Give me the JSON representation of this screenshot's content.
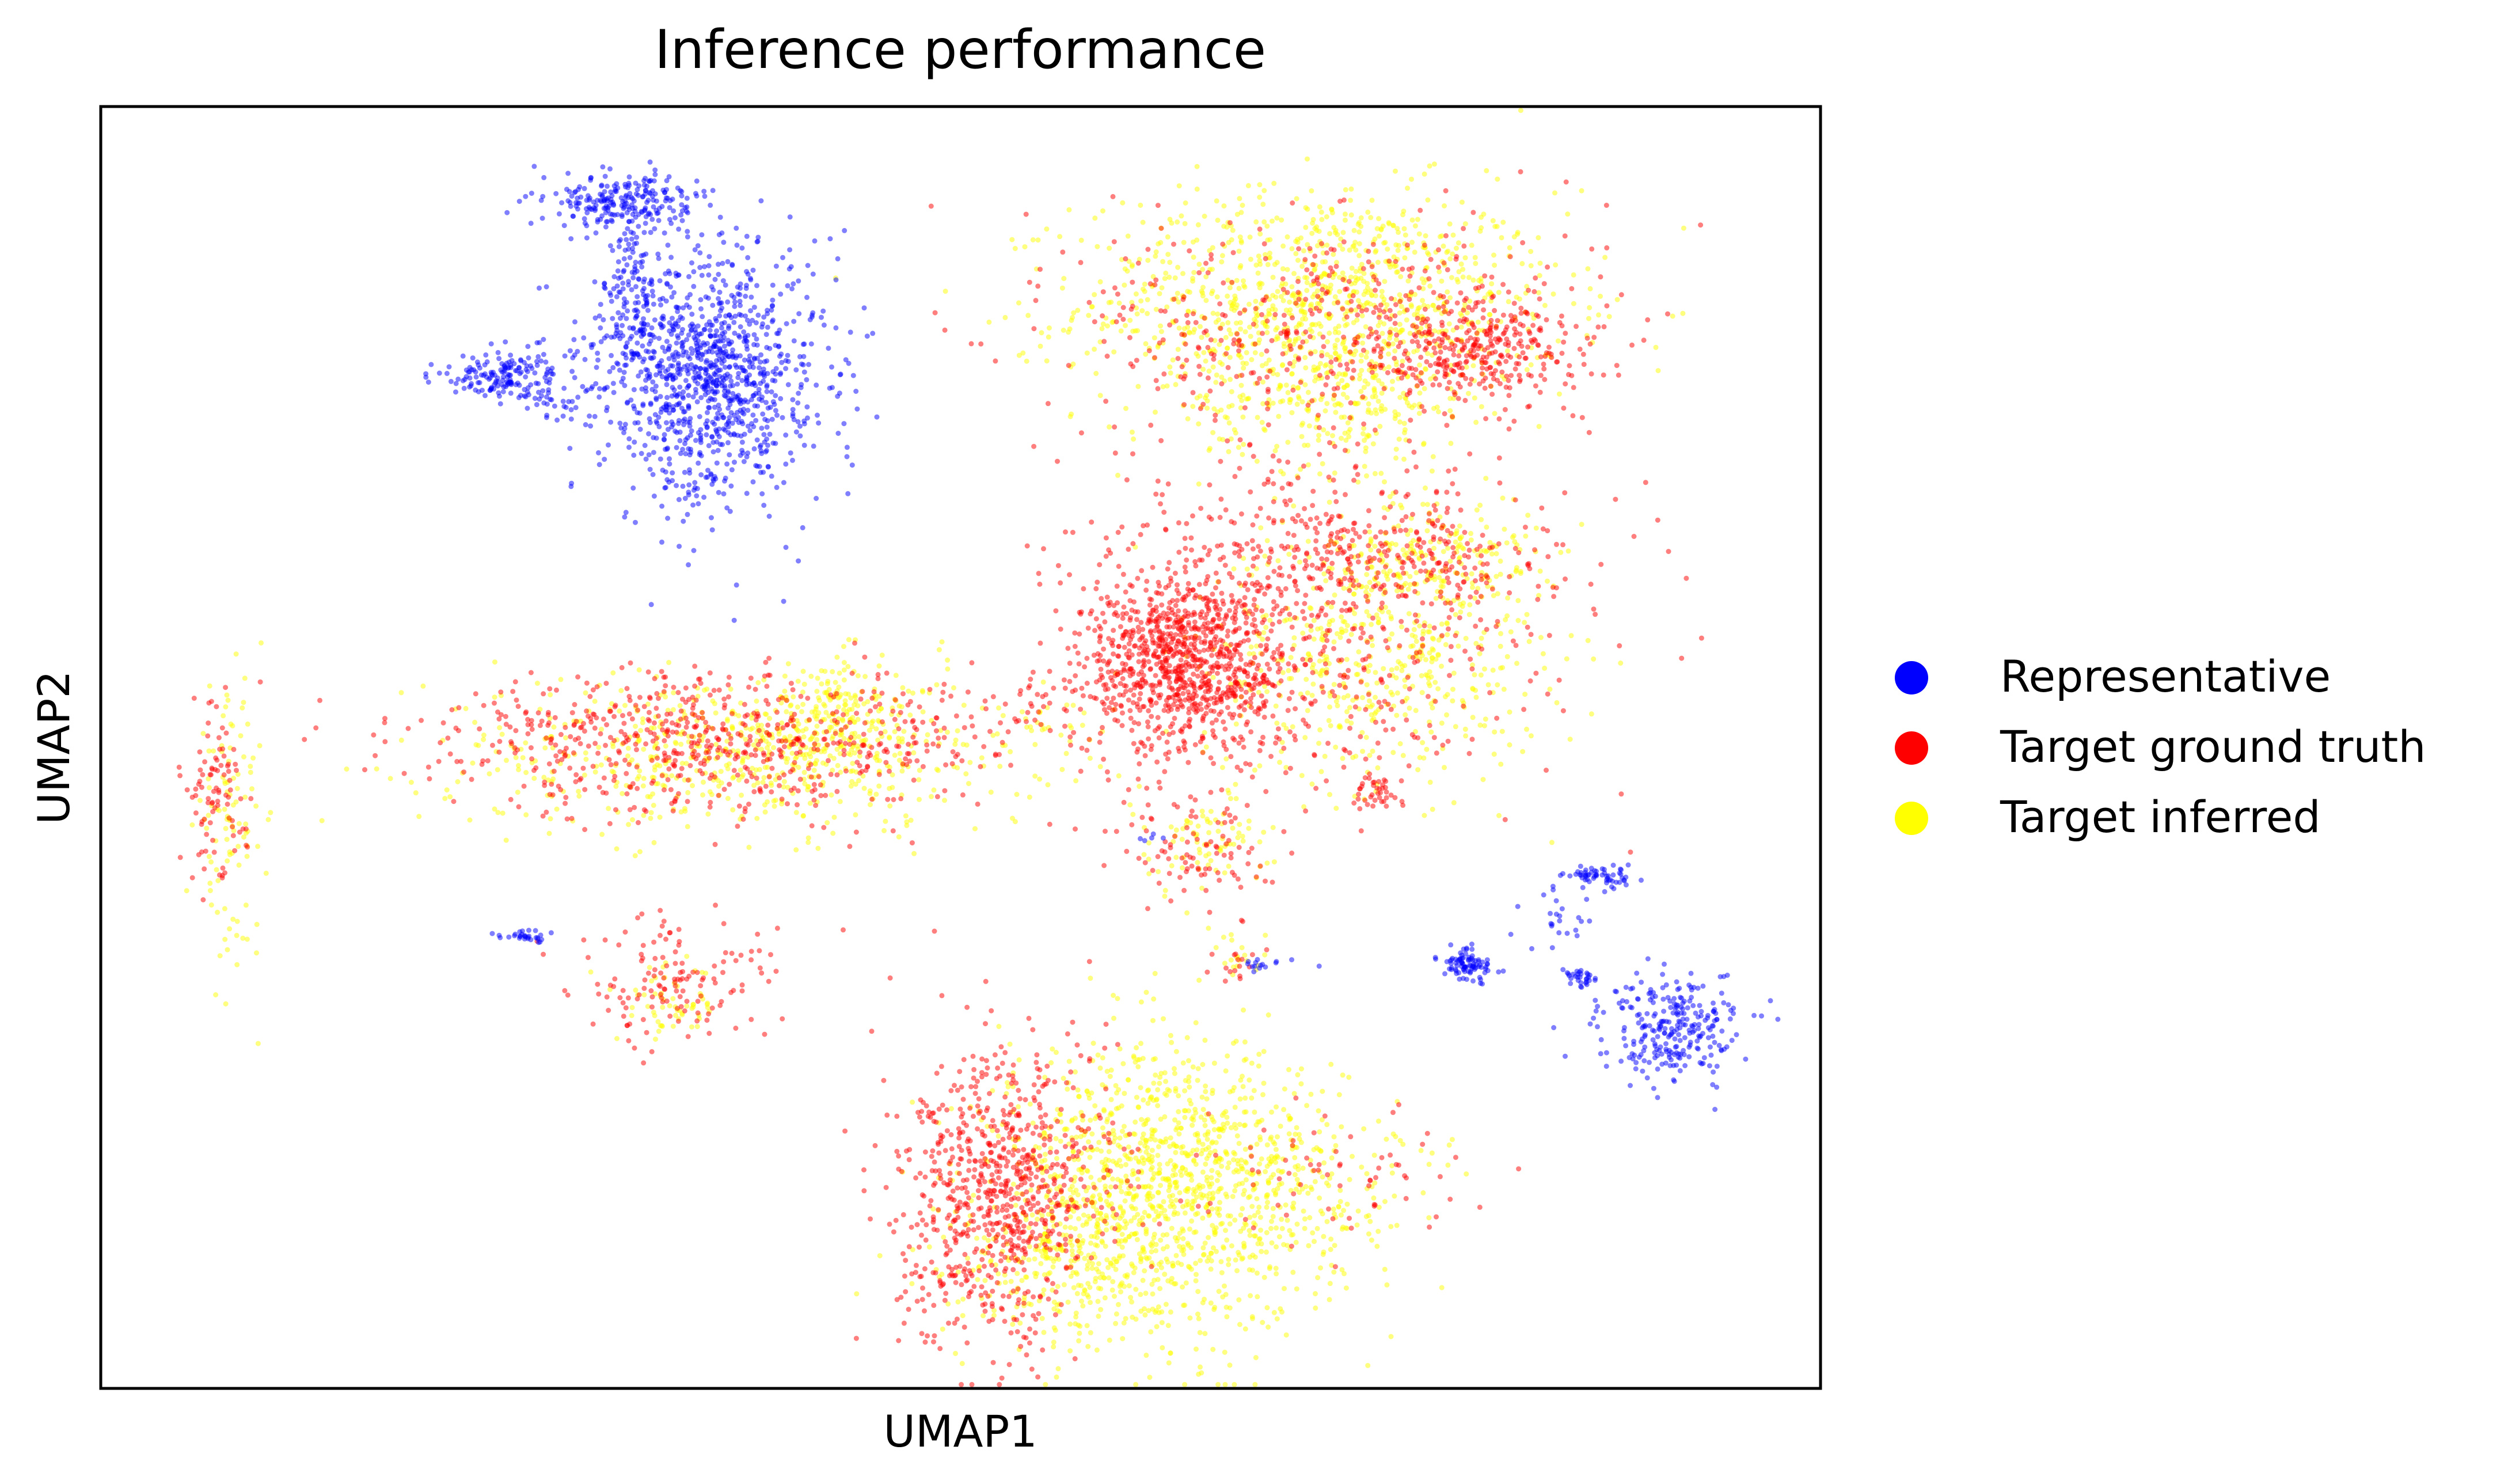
{
  "chart_data": {
    "type": "scatter",
    "title": "Inference performance",
    "xlabel": "UMAP1",
    "ylabel": "UMAP2",
    "xlim": [
      0,
      100
    ],
    "ylim": [
      0,
      100
    ],
    "grid": false,
    "ticks_visible": false,
    "legend": {
      "placement": "right-center",
      "entries": [
        "Representative",
        "Target ground truth",
        "Target inferred"
      ]
    },
    "series": [
      {
        "name": "Representative",
        "color": "#0000ff",
        "clusters": [
          {
            "cx": 30.5,
            "cy": 92.5,
            "sx": 2.2,
            "sy": 1.2,
            "n": 230
          },
          {
            "cx": 31.0,
            "cy": 86.0,
            "sx": 0.9,
            "sy": 3.0,
            "n": 110
          },
          {
            "cx": 35.5,
            "cy": 79.0,
            "sx": 3.2,
            "sy": 4.8,
            "n": 1100
          },
          {
            "cx": 22.5,
            "cy": 79.0,
            "sx": 1.5,
            "sy": 0.8,
            "n": 110
          },
          {
            "cx": 25.5,
            "cy": 78.5,
            "sx": 1.5,
            "sy": 1.5,
            "n": 90
          },
          {
            "cx": 24.8,
            "cy": 35.3,
            "sx": 0.7,
            "sy": 0.25,
            "n": 30
          },
          {
            "cx": 91.5,
            "cy": 28.0,
            "sx": 2.0,
            "sy": 2.0,
            "n": 270
          },
          {
            "cx": 79.5,
            "cy": 33.0,
            "sx": 0.8,
            "sy": 0.6,
            "n": 90
          },
          {
            "cx": 87.0,
            "cy": 40.0,
            "sx": 1.0,
            "sy": 0.4,
            "n": 60
          },
          {
            "cx": 86.0,
            "cy": 32.0,
            "sx": 0.5,
            "sy": 0.4,
            "n": 30
          },
          {
            "cx": 84.5,
            "cy": 36.5,
            "sx": 1.6,
            "sy": 1.4,
            "n": 25
          },
          {
            "cx": 68.0,
            "cy": 33.0,
            "sx": 1.2,
            "sy": 0.3,
            "n": 15
          },
          {
            "cx": 61.0,
            "cy": 43.0,
            "sx": 0.4,
            "sy": 0.3,
            "n": 5
          }
        ]
      },
      {
        "name": "Target ground truth",
        "color": "#ff0000",
        "clusters": [
          {
            "cx": 72.5,
            "cy": 82.5,
            "sx": 7.5,
            "sy": 4.5,
            "n": 500
          },
          {
            "cx": 80.0,
            "cy": 81.5,
            "sx": 2.5,
            "sy": 1.8,
            "n": 250
          },
          {
            "cx": 63.0,
            "cy": 56.5,
            "sx": 3.0,
            "sy": 3.5,
            "n": 900
          },
          {
            "cx": 70.0,
            "cy": 59.0,
            "sx": 7.0,
            "sy": 6.0,
            "n": 500
          },
          {
            "cx": 75.0,
            "cy": 65.0,
            "sx": 5.0,
            "sy": 2.5,
            "n": 250
          },
          {
            "cx": 70.0,
            "cy": 70.0,
            "sx": 4.5,
            "sy": 3.0,
            "n": 60
          },
          {
            "cx": 74.0,
            "cy": 46.5,
            "sx": 0.8,
            "sy": 0.8,
            "n": 40
          },
          {
            "cx": 64.0,
            "cy": 42.0,
            "sx": 2.0,
            "sy": 2.5,
            "n": 90
          },
          {
            "cx": 36.5,
            "cy": 50.5,
            "sx": 9.0,
            "sy": 2.8,
            "n": 700
          },
          {
            "cx": 54.5,
            "cy": 53.5,
            "sx": 1.5,
            "sy": 0.8,
            "n": 20
          },
          {
            "cx": 6.5,
            "cy": 46.5,
            "sx": 1.0,
            "sy": 3.5,
            "n": 90
          },
          {
            "cx": 33.5,
            "cy": 31.5,
            "sx": 3.0,
            "sy": 2.5,
            "n": 140
          },
          {
            "cx": 51.5,
            "cy": 14.5,
            "sx": 2.6,
            "sy": 5.5,
            "n": 600
          },
          {
            "cx": 55.5,
            "cy": 17.0,
            "sx": 2.5,
            "sy": 5.0,
            "n": 200
          },
          {
            "cx": 71.0,
            "cy": 16.5,
            "sx": 4.0,
            "sy": 3.0,
            "n": 70
          },
          {
            "cx": 66.0,
            "cy": 33.0,
            "sx": 1.0,
            "sy": 0.5,
            "n": 15
          }
        ]
      },
      {
        "name": "Target inferred",
        "color": "#ffff00",
        "clusters": [
          {
            "cx": 71.0,
            "cy": 84.5,
            "sx": 7.0,
            "sy": 4.5,
            "n": 1100
          },
          {
            "cx": 72.0,
            "cy": 76.5,
            "sx": 4.0,
            "sy": 2.5,
            "n": 200
          },
          {
            "cx": 74.0,
            "cy": 57.0,
            "sx": 5.0,
            "sy": 5.0,
            "n": 500
          },
          {
            "cx": 77.5,
            "cy": 64.5,
            "sx": 3.0,
            "sy": 2.5,
            "n": 200
          },
          {
            "cx": 37.0,
            "cy": 49.5,
            "sx": 9.0,
            "sy": 3.0,
            "n": 600
          },
          {
            "cx": 43.0,
            "cy": 52.0,
            "sx": 3.0,
            "sy": 2.5,
            "n": 200
          },
          {
            "cx": 7.5,
            "cy": 44.0,
            "sx": 1.0,
            "sy": 5.0,
            "n": 100
          },
          {
            "cx": 33.0,
            "cy": 30.0,
            "sx": 1.5,
            "sy": 1.5,
            "n": 60
          },
          {
            "cx": 62.0,
            "cy": 15.5,
            "sx": 5.0,
            "sy": 5.5,
            "n": 1300
          },
          {
            "cx": 56.0,
            "cy": 10.0,
            "sx": 3.0,
            "sy": 2.5,
            "n": 200
          },
          {
            "cx": 72.0,
            "cy": 16.0,
            "sx": 3.0,
            "sy": 3.0,
            "n": 80
          },
          {
            "cx": 64.0,
            "cy": 42.5,
            "sx": 2.0,
            "sy": 2.0,
            "n": 80
          },
          {
            "cx": 55.5,
            "cy": 52.0,
            "sx": 1.5,
            "sy": 1.0,
            "n": 20
          },
          {
            "cx": 66.0,
            "cy": 34.0,
            "sx": 1.0,
            "sy": 1.0,
            "n": 20
          }
        ]
      }
    ]
  }
}
